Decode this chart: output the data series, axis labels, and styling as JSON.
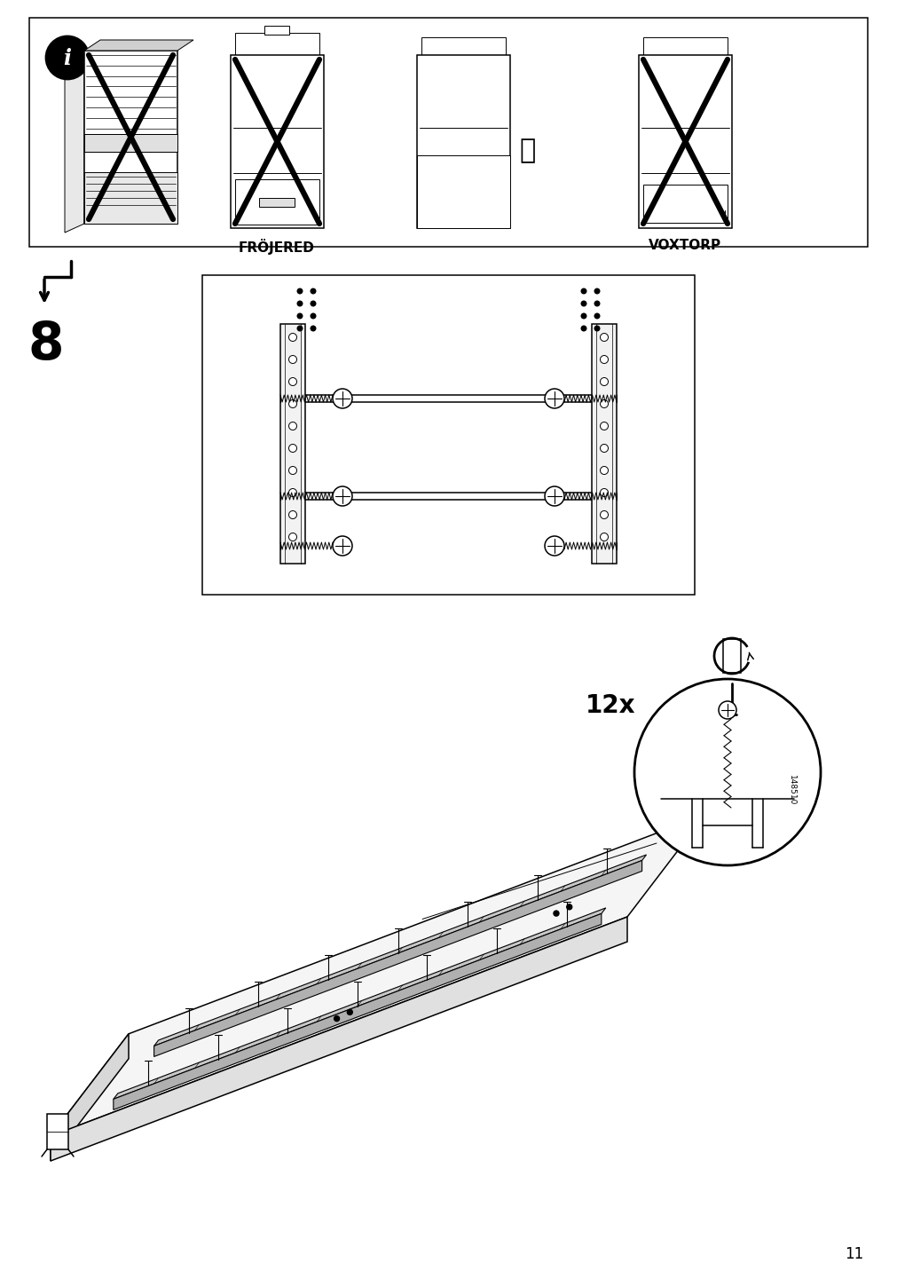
{
  "page_number": "11",
  "background_color": "#ffffff",
  "line_color": "#000000",
  "step_number": "8",
  "quantity_label": "12x",
  "part_number": "148510",
  "warning_label_1": "FRÖJERED",
  "warning_label_2": "VOXTORP",
  "fig_width": 10.12,
  "fig_height": 14.32
}
